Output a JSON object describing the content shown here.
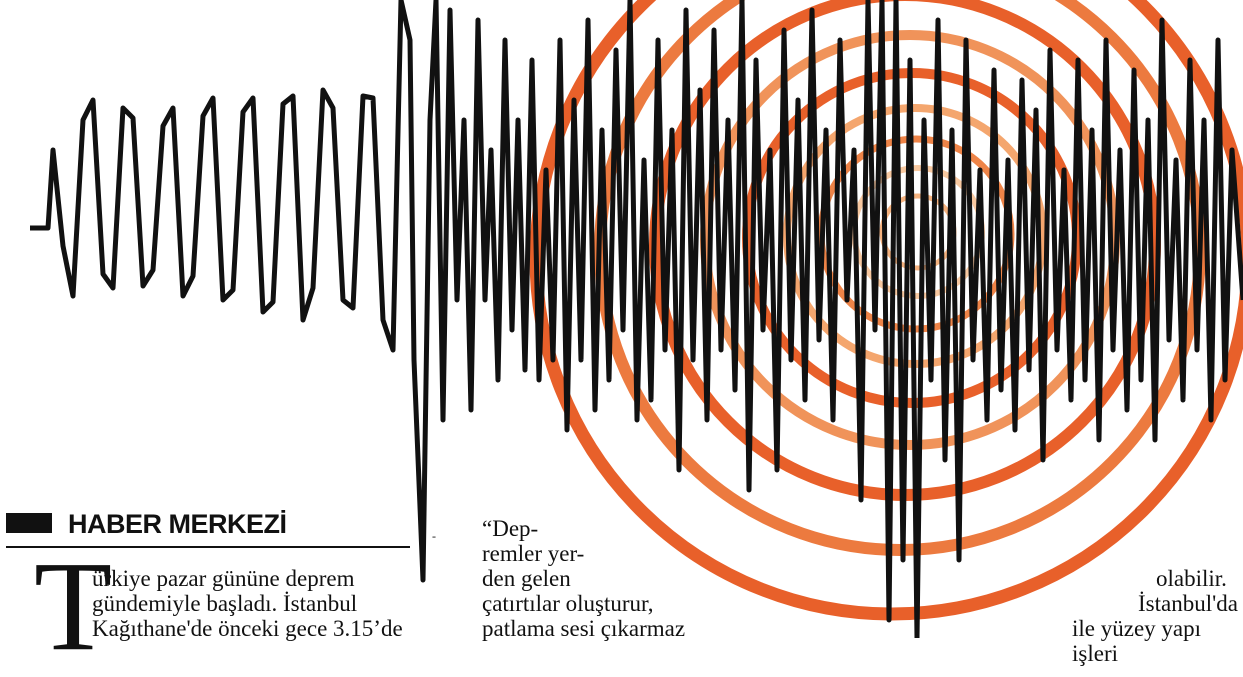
{
  "byline": {
    "text": "HABER MERKEZİ"
  },
  "dash": "-",
  "article": {
    "drop_cap": "T",
    "col1": [
      "ürkiye pazar gününe deprem",
      "gündemiyle başladı. İstanbul",
      "Kağıthane'de önceki gece 3.15’de"
    ],
    "col2": [
      "“Dep-",
      "remler yer-",
      "den gelen",
      "çatırtılar oluşturur,",
      "patlama sesi çıkarmaz"
    ],
    "col3": [
      "olabilir.",
      "İstanbul'da",
      "ile yüzey yapı işleri"
    ]
  },
  "colors": {
    "wave": "#111111",
    "ring_dark": "#e8602a",
    "ring_light": "#f4b27f",
    "text": "#111111"
  },
  "illustration": {
    "name": "seismograph-wave-with-epicenter-rings"
  }
}
